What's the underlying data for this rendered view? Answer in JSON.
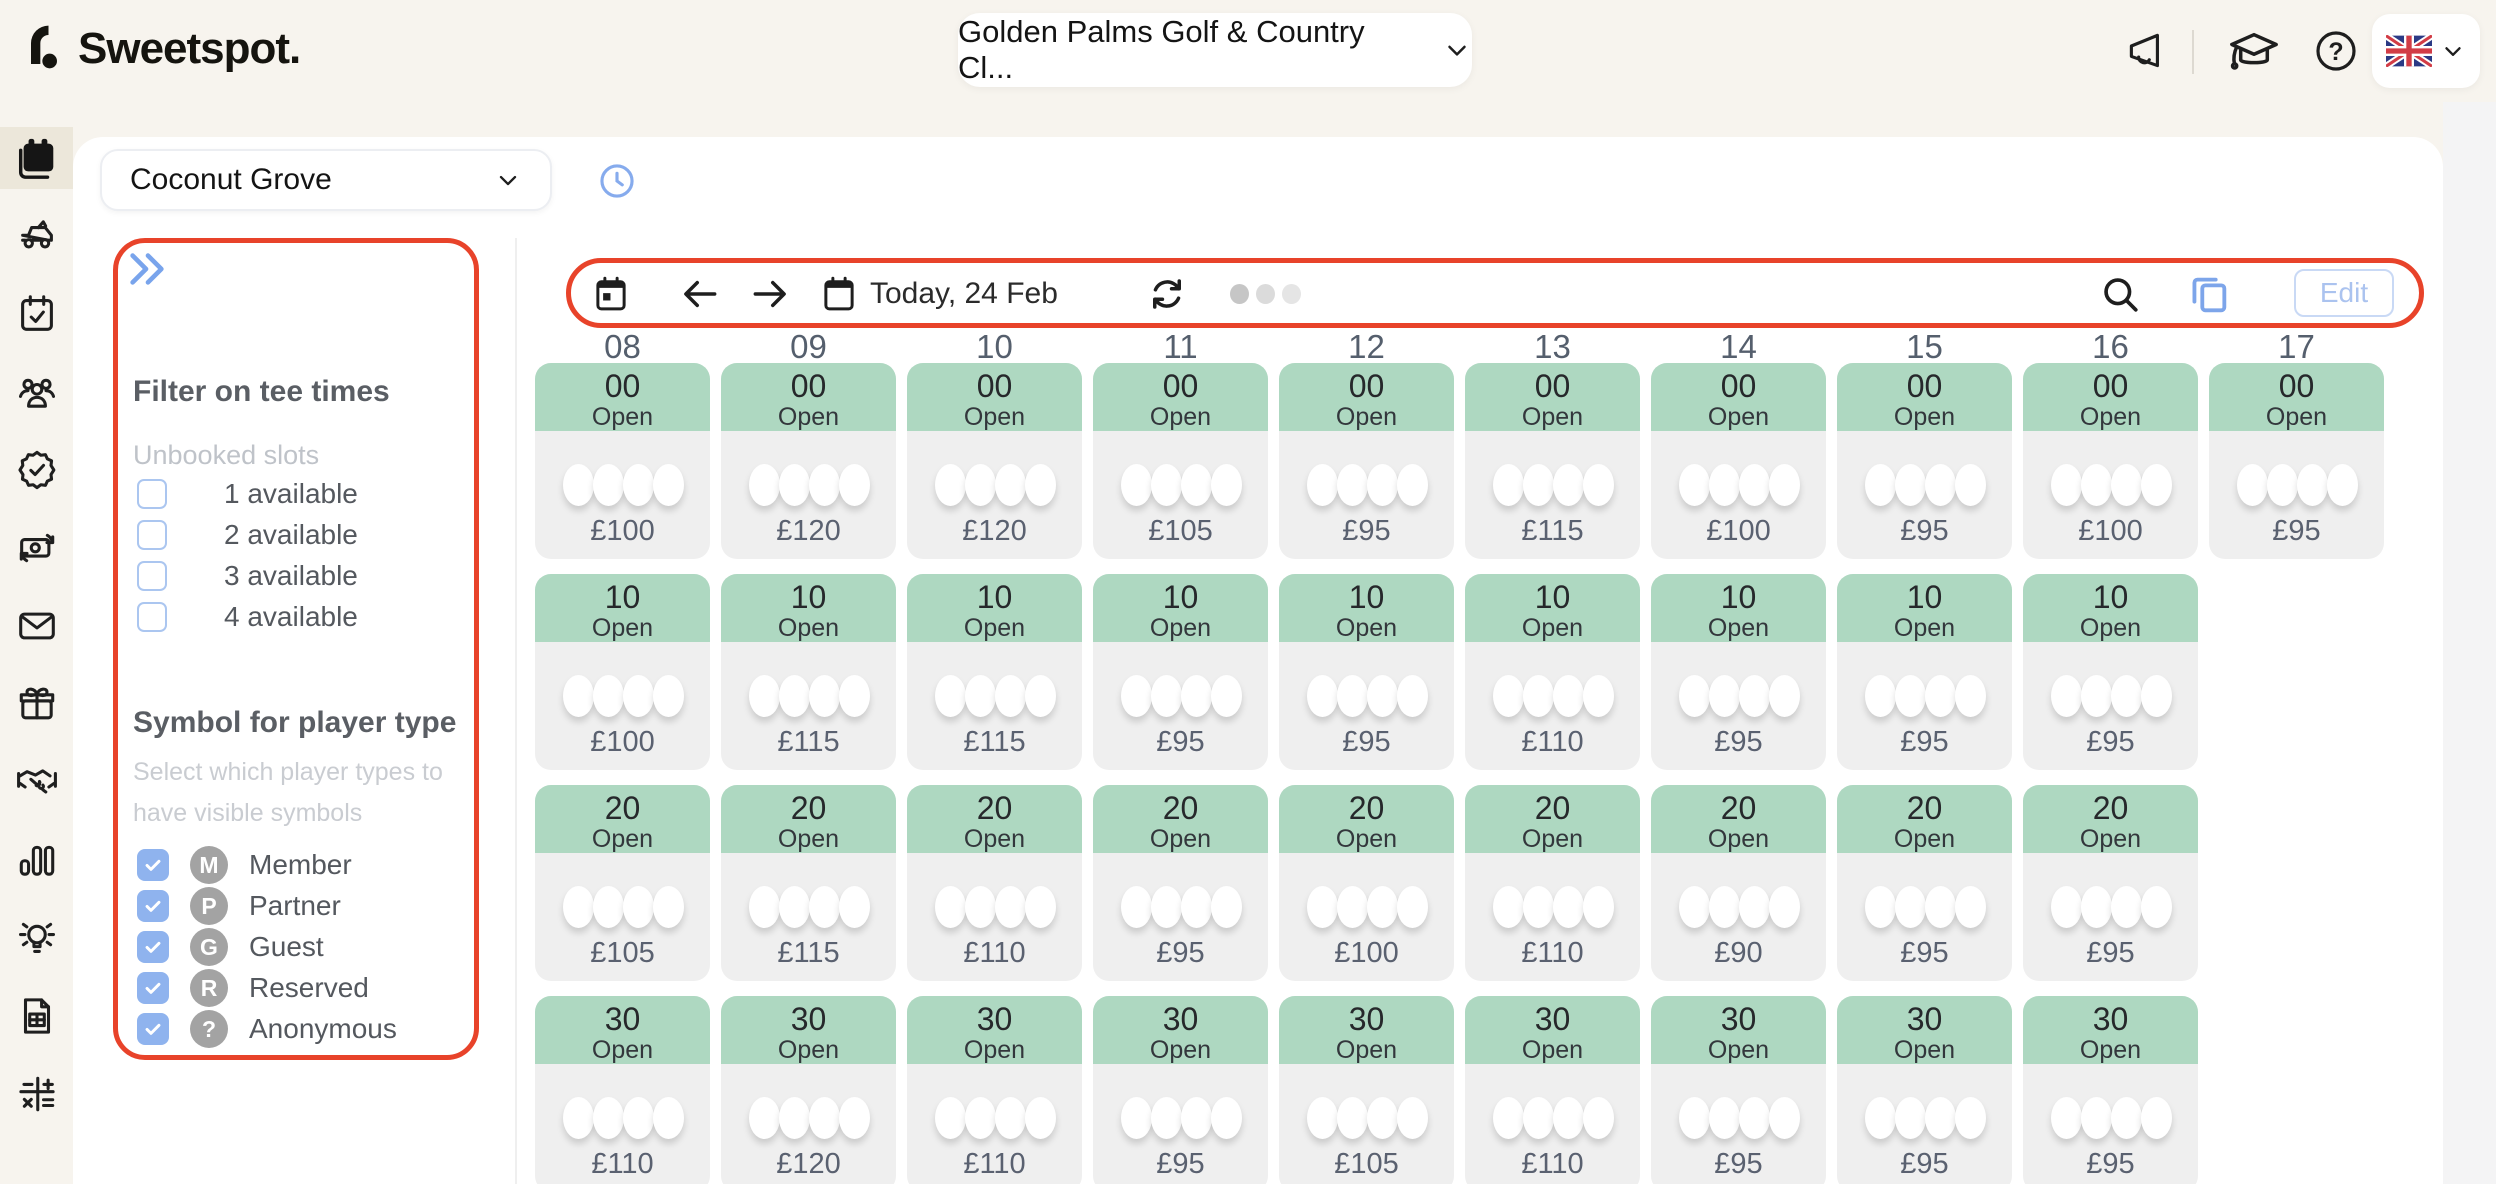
{
  "topbar": {
    "brand": "Sweetspot.",
    "club_selector_label": "Golden Palms Golf & Country Cl...",
    "language": "UK"
  },
  "sidebar": {
    "items": [
      {
        "id": "tee-sheet",
        "icon": "calendar-filled",
        "active": true
      },
      {
        "id": "golf-cart",
        "icon": "golf-cart",
        "active": false
      },
      {
        "id": "bookings",
        "icon": "calendar-check",
        "active": false
      },
      {
        "id": "members",
        "icon": "people",
        "active": false
      },
      {
        "id": "memberships",
        "icon": "badge-check",
        "active": false
      },
      {
        "id": "payments",
        "icon": "money",
        "active": false
      },
      {
        "id": "messages",
        "icon": "mail",
        "active": false
      },
      {
        "id": "vouchers",
        "icon": "gift",
        "active": false
      },
      {
        "id": "partnerships",
        "icon": "handshake",
        "active": false
      },
      {
        "id": "statistics",
        "icon": "bar-chart",
        "active": false
      },
      {
        "id": "insights",
        "icon": "lightbulb",
        "active": false
      },
      {
        "id": "invoices",
        "icon": "document",
        "active": false
      },
      {
        "id": "accounting",
        "icon": "calculator",
        "active": false
      }
    ]
  },
  "course_selector": {
    "label": "Coconut Grove"
  },
  "filter_panel": {
    "tee_times_heading": "Filter on tee times",
    "unbooked_slots_label": "Unbooked slots",
    "availability_options": [
      {
        "label": "1 available",
        "checked": false
      },
      {
        "label": "2 available",
        "checked": false
      },
      {
        "label": "3 available",
        "checked": false
      },
      {
        "label": "4 available",
        "checked": false
      }
    ],
    "player_type_heading": "Symbol for player type",
    "player_type_help": "Select which player types to have visible symbols",
    "player_types": [
      {
        "symbol": "M",
        "label": "Member",
        "checked": true
      },
      {
        "symbol": "P",
        "label": "Partner",
        "checked": true
      },
      {
        "symbol": "G",
        "label": "Guest",
        "checked": true
      },
      {
        "symbol": "R",
        "label": "Reserved",
        "checked": true
      },
      {
        "symbol": "?",
        "label": "Anonymous",
        "checked": true
      }
    ]
  },
  "toolbar": {
    "date_label": "Today, 24 Feb",
    "edit_label": "Edit"
  },
  "tee_sheet": {
    "column_headers": [
      "08",
      "09",
      "10",
      "11",
      "12",
      "13",
      "14",
      "15",
      "16",
      "17"
    ],
    "rows": [
      {
        "minute": "00",
        "cells": [
          {
            "status": "Open",
            "price": "£100",
            "open_slots": 4
          },
          {
            "status": "Open",
            "price": "£120",
            "open_slots": 4
          },
          {
            "status": "Open",
            "price": "£120",
            "open_slots": 4
          },
          {
            "status": "Open",
            "price": "£105",
            "open_slots": 4
          },
          {
            "status": "Open",
            "price": "£95",
            "open_slots": 4
          },
          {
            "status": "Open",
            "price": "£115",
            "open_slots": 4
          },
          {
            "status": "Open",
            "price": "£100",
            "open_slots": 4
          },
          {
            "status": "Open",
            "price": "£95",
            "open_slots": 4
          },
          {
            "status": "Open",
            "price": "£100",
            "open_slots": 4
          },
          {
            "status": "Open",
            "price": "£95",
            "open_slots": 4
          }
        ]
      },
      {
        "minute": "10",
        "cells": [
          {
            "status": "Open",
            "price": "£100",
            "open_slots": 4
          },
          {
            "status": "Open",
            "price": "£115",
            "open_slots": 4
          },
          {
            "status": "Open",
            "price": "£115",
            "open_slots": 4
          },
          {
            "status": "Open",
            "price": "£95",
            "open_slots": 4
          },
          {
            "status": "Open",
            "price": "£95",
            "open_slots": 4
          },
          {
            "status": "Open",
            "price": "£110",
            "open_slots": 4
          },
          {
            "status": "Open",
            "price": "£95",
            "open_slots": 4
          },
          {
            "status": "Open",
            "price": "£95",
            "open_slots": 4
          },
          {
            "status": "Open",
            "price": "£95",
            "open_slots": 4
          },
          null
        ]
      },
      {
        "minute": "20",
        "cells": [
          {
            "status": "Open",
            "price": "£105",
            "open_slots": 4
          },
          {
            "status": "Open",
            "price": "£115",
            "open_slots": 4
          },
          {
            "status": "Open",
            "price": "£110",
            "open_slots": 4
          },
          {
            "status": "Open",
            "price": "£95",
            "open_slots": 4
          },
          {
            "status": "Open",
            "price": "£100",
            "open_slots": 4
          },
          {
            "status": "Open",
            "price": "£110",
            "open_slots": 4
          },
          {
            "status": "Open",
            "price": "£90",
            "open_slots": 4
          },
          {
            "status": "Open",
            "price": "£95",
            "open_slots": 4
          },
          {
            "status": "Open",
            "price": "£95",
            "open_slots": 4
          },
          null
        ]
      },
      {
        "minute": "30",
        "cells": [
          {
            "status": "Open",
            "price": "£110",
            "open_slots": 4
          },
          {
            "status": "Open",
            "price": "£120",
            "open_slots": 4
          },
          {
            "status": "Open",
            "price": "£110",
            "open_slots": 4
          },
          {
            "status": "Open",
            "price": "£95",
            "open_slots": 4
          },
          {
            "status": "Open",
            "price": "£105",
            "open_slots": 4
          },
          {
            "status": "Open",
            "price": "£110",
            "open_slots": 4
          },
          {
            "status": "Open",
            "price": "£95",
            "open_slots": 4
          },
          {
            "status": "Open",
            "price": "£95",
            "open_slots": 4
          },
          {
            "status": "Open",
            "price": "£95",
            "open_slots": 4
          },
          null
        ]
      }
    ]
  },
  "annotation_color": "#e8432a"
}
